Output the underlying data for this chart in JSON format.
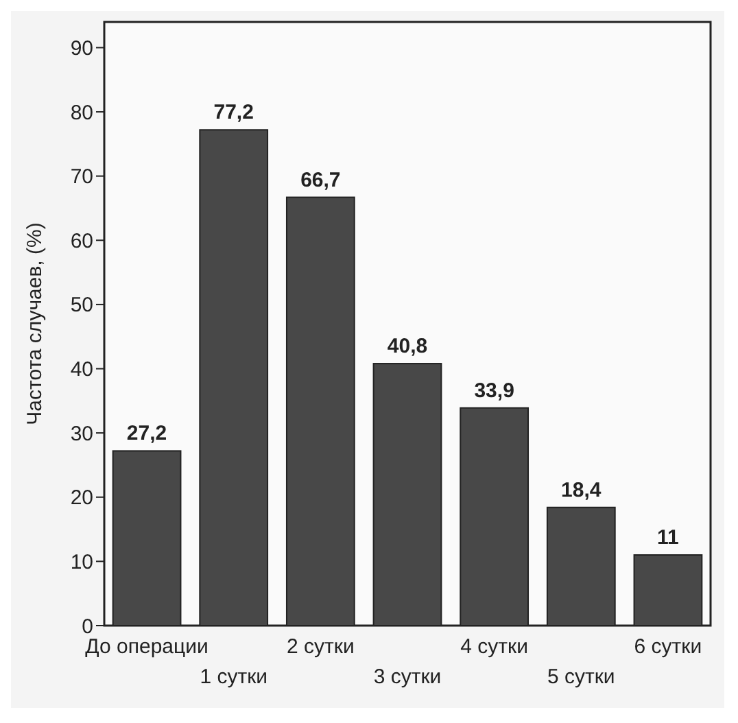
{
  "chart_data": {
    "type": "bar",
    "ylabel": "Частота случаев, (%)",
    "categories": [
      "До операции",
      "1 сутки",
      "2 сутки",
      "3 сутки",
      "4 сутки",
      "5 сутки",
      "6 сутки"
    ],
    "values": [
      27.2,
      77.2,
      66.7,
      40.8,
      33.9,
      18.4,
      11
    ],
    "value_labels": [
      "27,2",
      "77,2",
      "66,7",
      "40,8",
      "33,9",
      "18,4",
      "11"
    ],
    "color": "#484848",
    "ylim": [
      0,
      94
    ],
    "yticks": [
      0,
      10,
      20,
      30,
      40,
      50,
      60,
      70,
      80,
      90
    ],
    "grid": false
  }
}
